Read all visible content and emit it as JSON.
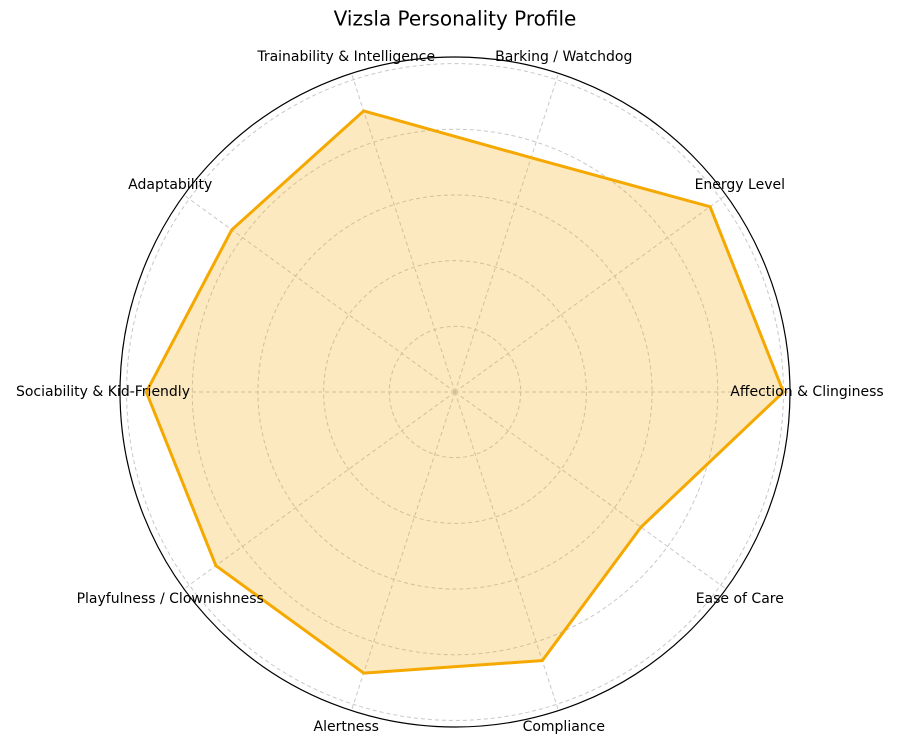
{
  "chart_data": {
    "type": "radar",
    "title": "Vizsla Personality Profile",
    "categories": [
      "Affection & Clinginess",
      "Energy Level",
      "Barking / Watchdog",
      "Trainability & Intelligence",
      "Adaptability",
      "Sociability & Kid-Friendly",
      "Playfulness / Clownishness",
      "Alertness",
      "Compliance",
      "Ease of Care"
    ],
    "values": [
      5.0,
      4.8,
      3.75,
      4.5,
      4.2,
      4.7,
      4.5,
      4.5,
      4.3,
      3.5
    ],
    "color": "#f5a800",
    "ylim": [
      0,
      5.1
    ],
    "yticks": [
      1,
      2,
      3,
      4,
      5
    ],
    "grid": true
  }
}
